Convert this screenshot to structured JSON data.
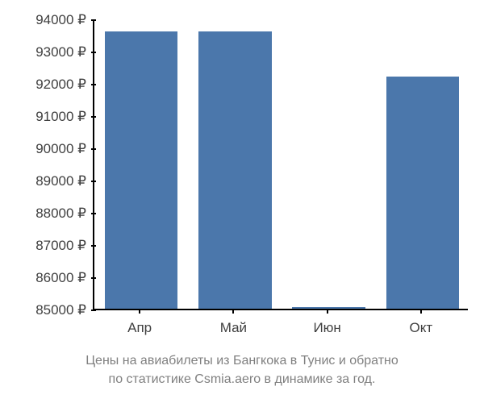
{
  "chart": {
    "type": "bar",
    "y_axis": {
      "min": 85000,
      "max": 94000,
      "ticks": [
        85000,
        86000,
        87000,
        88000,
        89000,
        90000,
        91000,
        92000,
        93000,
        94000
      ],
      "tick_labels": [
        "85000 ₽",
        "86000 ₽",
        "87000 ₽",
        "88000 ₽",
        "89000 ₽",
        "90000 ₽",
        "91000 ₽",
        "92000 ₽",
        "93000 ₽",
        "94000 ₽"
      ],
      "label_fontsize": 17,
      "label_color": "#404040"
    },
    "x_axis": {
      "categories": [
        "Апр",
        "Май",
        "Июн",
        "Окт"
      ],
      "label_fontsize": 17,
      "label_color": "#404040"
    },
    "bars": {
      "values": [
        93600,
        93600,
        85050,
        92200
      ],
      "color": "#4b77ab",
      "width_fraction": 0.78
    },
    "plot": {
      "background_color": "#ffffff",
      "axis_color": "#000000",
      "axis_width": 2
    },
    "caption": {
      "line1": "Цены на авиабилеты из Бангкока в Тунис и обратно",
      "line2": "по статистике Csmia.aero в динамике за год.",
      "fontsize": 16,
      "color": "#808080"
    }
  }
}
